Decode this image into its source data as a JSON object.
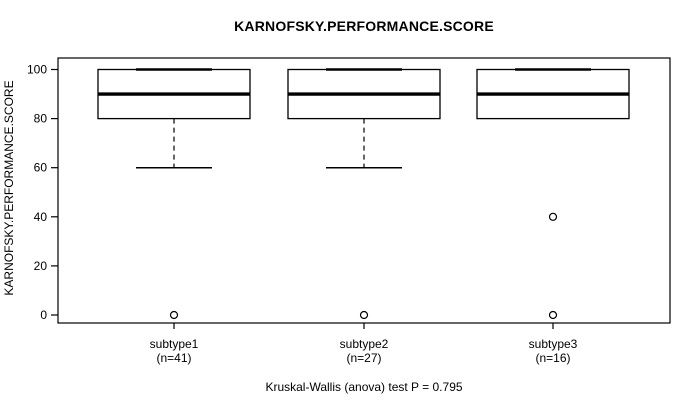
{
  "figure": {
    "title": "KARNOFSKY.PERFORMANCE.SCORE",
    "caption": "Kruskal-Wallis (anova) test P = 0.795"
  },
  "chart_data": {
    "type": "boxplot",
    "title": "KARNOFSKY.PERFORMANCE.SCORE",
    "ylabel": "KARNOFSKY.PERFORMANCE.SCORE",
    "xlabel": "",
    "ylim": [
      0,
      100
    ],
    "yticks": [
      0,
      20,
      40,
      60,
      80,
      100
    ],
    "grid": false,
    "legend": "none",
    "caption": "Kruskal-Wallis (anova) test P = 0.795",
    "stat_test": {
      "name": "Kruskal-Wallis (anova) test",
      "p_label": "P = 0.795",
      "p_value": 0.795
    },
    "categories": [
      "subtype1",
      "subtype2",
      "subtype3"
    ],
    "groups": [
      {
        "label": "subtype1",
        "n_label": "(n=41)",
        "n": 41,
        "whisker_low": 60,
        "q1": 80,
        "median": 90,
        "q3": 100,
        "whisker_high": 100,
        "outliers": [
          0
        ]
      },
      {
        "label": "subtype2",
        "n_label": "(n=27)",
        "n": 27,
        "whisker_low": 60,
        "q1": 80,
        "median": 90,
        "q3": 100,
        "whisker_high": 100,
        "outliers": [
          0
        ]
      },
      {
        "label": "subtype3",
        "n_label": "(n=16)",
        "n": 16,
        "whisker_low": 80,
        "q1": 80,
        "median": 90,
        "q3": 100,
        "whisker_high": 100,
        "outliers": [
          40,
          0
        ]
      }
    ],
    "colors": {
      "box_border": "#000000",
      "median": "#000000",
      "whisker": "#000000",
      "outlier_stroke": "#000000",
      "background": "#ffffff"
    }
  }
}
